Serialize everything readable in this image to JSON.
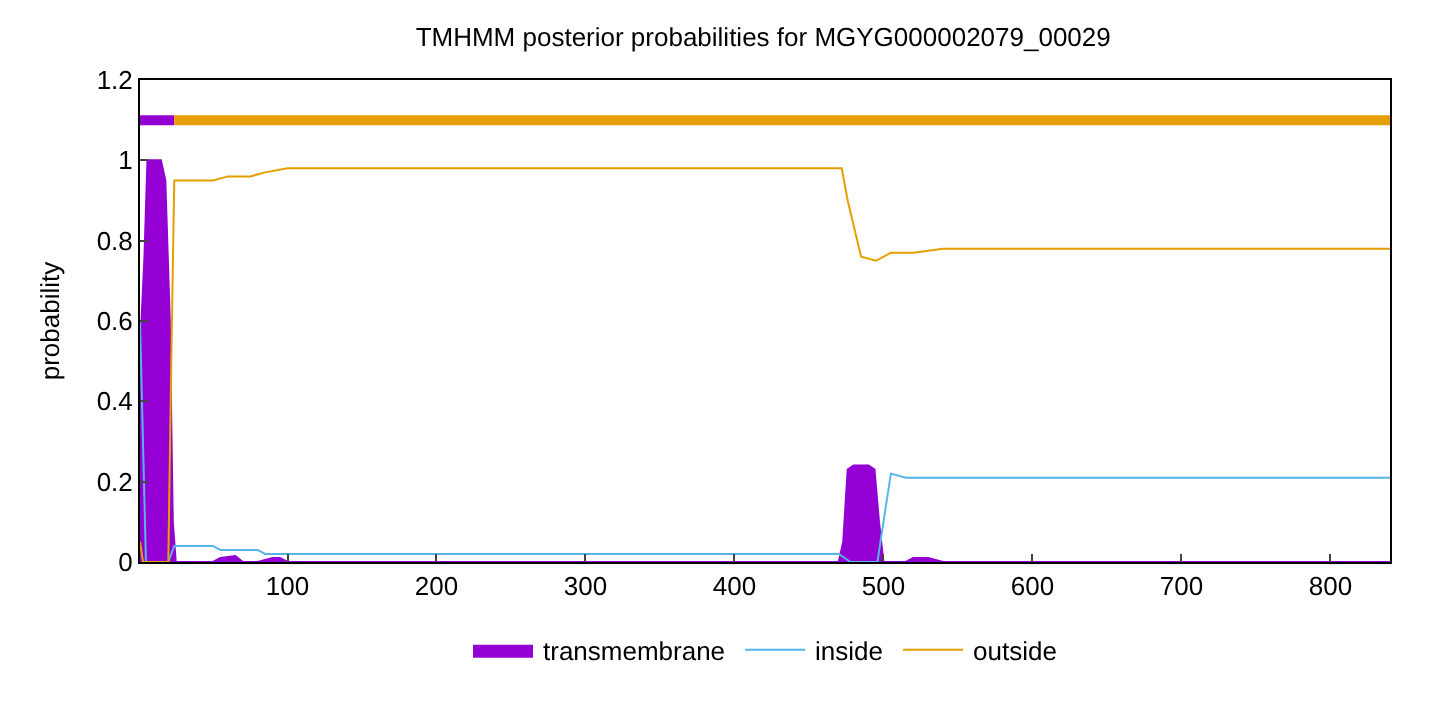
{
  "chart_data": {
    "type": "line",
    "title": "TMHMM posterior probabilities for MGYG000002079_00029",
    "ylabel": "probability",
    "xlim": [
      1,
      840
    ],
    "xticks": [
      100,
      200,
      300,
      400,
      500,
      600,
      700,
      800
    ],
    "ylim": [
      0,
      1.2
    ],
    "yticks": [
      0,
      0.2,
      0.4,
      0.6,
      0.8,
      1,
      1.2
    ],
    "grid": false,
    "legend": "bottom",
    "marker": "none",
    "series": [
      {
        "name": "transmembrane",
        "type": "area",
        "color": "#9400d3",
        "x": [
          1,
          2,
          4,
          6,
          8,
          15,
          18,
          21,
          23,
          25,
          40,
          50,
          55,
          65,
          70,
          80,
          90,
          95,
          100,
          105,
          110,
          300,
          470,
          473,
          476,
          480,
          490,
          494,
          497,
          500,
          515,
          520,
          530,
          540,
          545,
          840
        ],
        "values": [
          0.35,
          0.6,
          0.76,
          1,
          1,
          1,
          0.95,
          0.6,
          0.1,
          0,
          0,
          0,
          0.01,
          0.015,
          0,
          0,
          0.01,
          0.01,
          0,
          0,
          0,
          0,
          0,
          0.05,
          0.23,
          0.24,
          0.24,
          0.23,
          0.1,
          0,
          0,
          0.01,
          0.01,
          0,
          0,
          0
        ]
      },
      {
        "name": "inside",
        "color": "#56b4e9",
        "x": [
          1,
          3,
          5,
          20,
          22,
          24,
          50,
          55,
          80,
          85,
          470,
          474,
          478,
          496,
          500,
          505,
          515,
          840
        ],
        "values": [
          0.6,
          0.3,
          0,
          0,
          0.02,
          0.04,
          0.04,
          0.03,
          0.03,
          0.02,
          0.02,
          0.01,
          0,
          0,
          0.1,
          0.22,
          0.21,
          0.21
        ]
      },
      {
        "name": "outside",
        "color": "#e69f00",
        "x": [
          1,
          3,
          5,
          20,
          22,
          24,
          50,
          60,
          75,
          85,
          100,
          472,
          476,
          485,
          495,
          505,
          520,
          540,
          840
        ],
        "values": [
          0.05,
          0,
          0,
          0,
          0.5,
          0.95,
          0.95,
          0.96,
          0.96,
          0.97,
          0.98,
          0.98,
          0.9,
          0.76,
          0.75,
          0.77,
          0.77,
          0.78,
          0.78
        ]
      },
      {
        "color": "#9400d3",
        "x": [
          1,
          24
        ],
        "values": [
          1.1,
          1.1
        ]
      },
      {
        "color": "#e69f00",
        "x": [
          24,
          840
        ],
        "values": [
          1.1,
          1.1
        ]
      }
    ]
  }
}
